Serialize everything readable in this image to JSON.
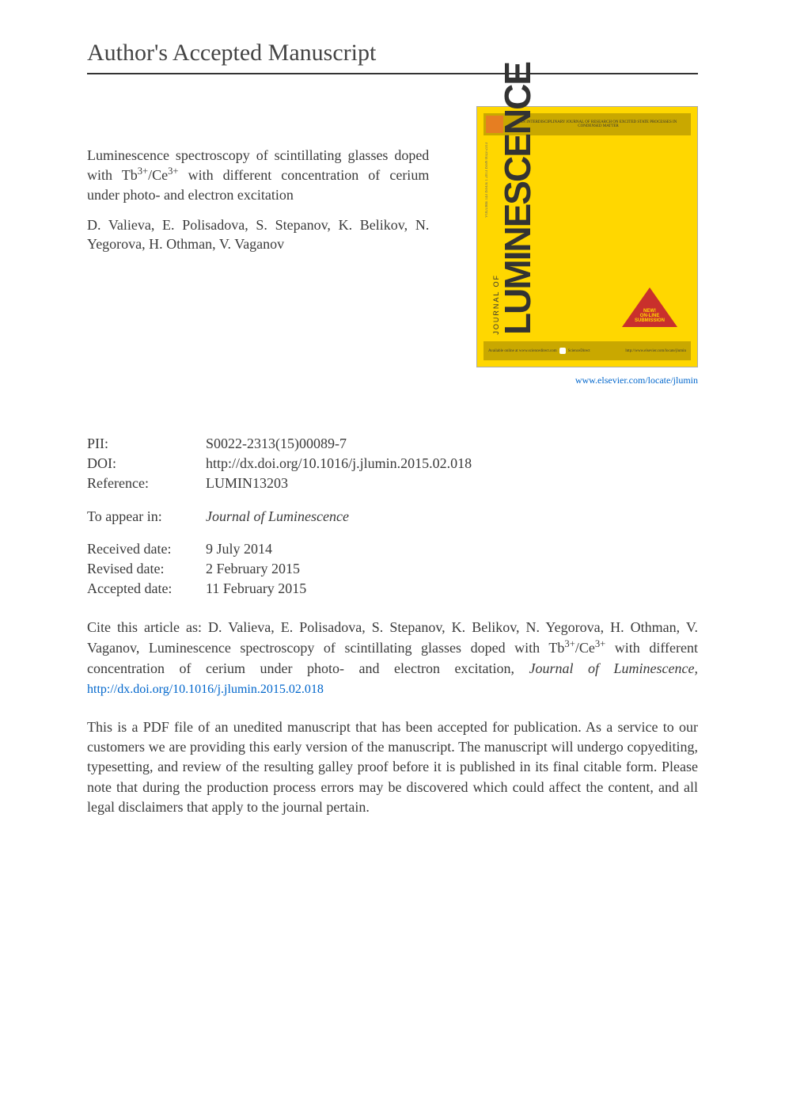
{
  "page": {
    "title": "Author's Accepted Manuscript"
  },
  "article": {
    "title_prefix": "Luminescence spectroscopy of scintillating glasses doped with Tb",
    "title_mid": "/Ce",
    "title_suffix": " with different concentration of cerium under photo- and electron excitation",
    "superscript": "3+",
    "authors": "D. Valieva, E. Polisadova, S. Stepanov, K. Belikov, N. Yegorova, H. Othman, V. Vaganov"
  },
  "cover": {
    "journal_of": "JOURNAL OF",
    "journal_name": "LUMINESCENCE",
    "header_text": "AN INTERDISCIPLINARY JOURNAL OF RESEARCH ON EXCITED STATE PROCESSES IN CONDENSED MATTER",
    "issue_text": "VOLUME 143 ISSUE 1 2013 ISSN 0022-2313",
    "badge_line1": "NEW!",
    "badge_line2": "ON-LINE",
    "badge_line3": "SUBMISSION",
    "sciencedirect": "ScienceDirect",
    "available_text": "Available online at www.sciencedirect.com",
    "bottom_url": "http://www.elsevier.com/locate/jlumin",
    "link_url": "www.elsevier.com/locate/jlumin"
  },
  "metadata": {
    "pii_label": "PII:",
    "pii_value": "S0022-2313(15)00089-7",
    "doi_label": "DOI:",
    "doi_value": "http://dx.doi.org/10.1016/j.jlumin.2015.02.018",
    "ref_label": "Reference:",
    "ref_value": "LUMIN13203"
  },
  "appear_in": {
    "label": "To appear in:",
    "journal": "Journal of Luminescence"
  },
  "dates": {
    "received_label": "Received date:",
    "received_value": "9 July 2014",
    "revised_label": "Revised date:",
    "revised_value": "2 February 2015",
    "accepted_label": "Accepted date:",
    "accepted_value": "11 February 2015"
  },
  "citation": {
    "prefix": "Cite this article as: D. Valieva, E. Polisadova, S. Stepanov, K. Belikov, N. Yegorova, H. Othman, V. Vaganov, Luminescence spectroscopy of scintillating glasses doped with Tb",
    "mid": "/Ce",
    "suffix": " with different concentration of cerium under photo- and electron excitation, ",
    "journal": "Journal of Luminescence,",
    "link": "http://dx.doi.org/10.1016/j.jlumin.2015.02.018",
    "superscript": "3+"
  },
  "disclaimer": {
    "text": "This is a PDF file of an unedited manuscript that has been accepted for publication. As a service to our customers we are providing this early version of the manuscript. The manuscript will undergo copyediting, typesetting, and review of the resulting galley proof before it is published in its final citable form. Please note that during the production process errors may be discovered which could affect the content, and all legal disclaimers that apply to the journal pertain."
  },
  "colors": {
    "cover_bg": "#ffd700",
    "cover_accent": "#c9a800",
    "badge_color": "#c9302c",
    "link_color": "#0066cc",
    "text_color": "#3a3a3a",
    "elsevier_color": "#e67e22"
  }
}
